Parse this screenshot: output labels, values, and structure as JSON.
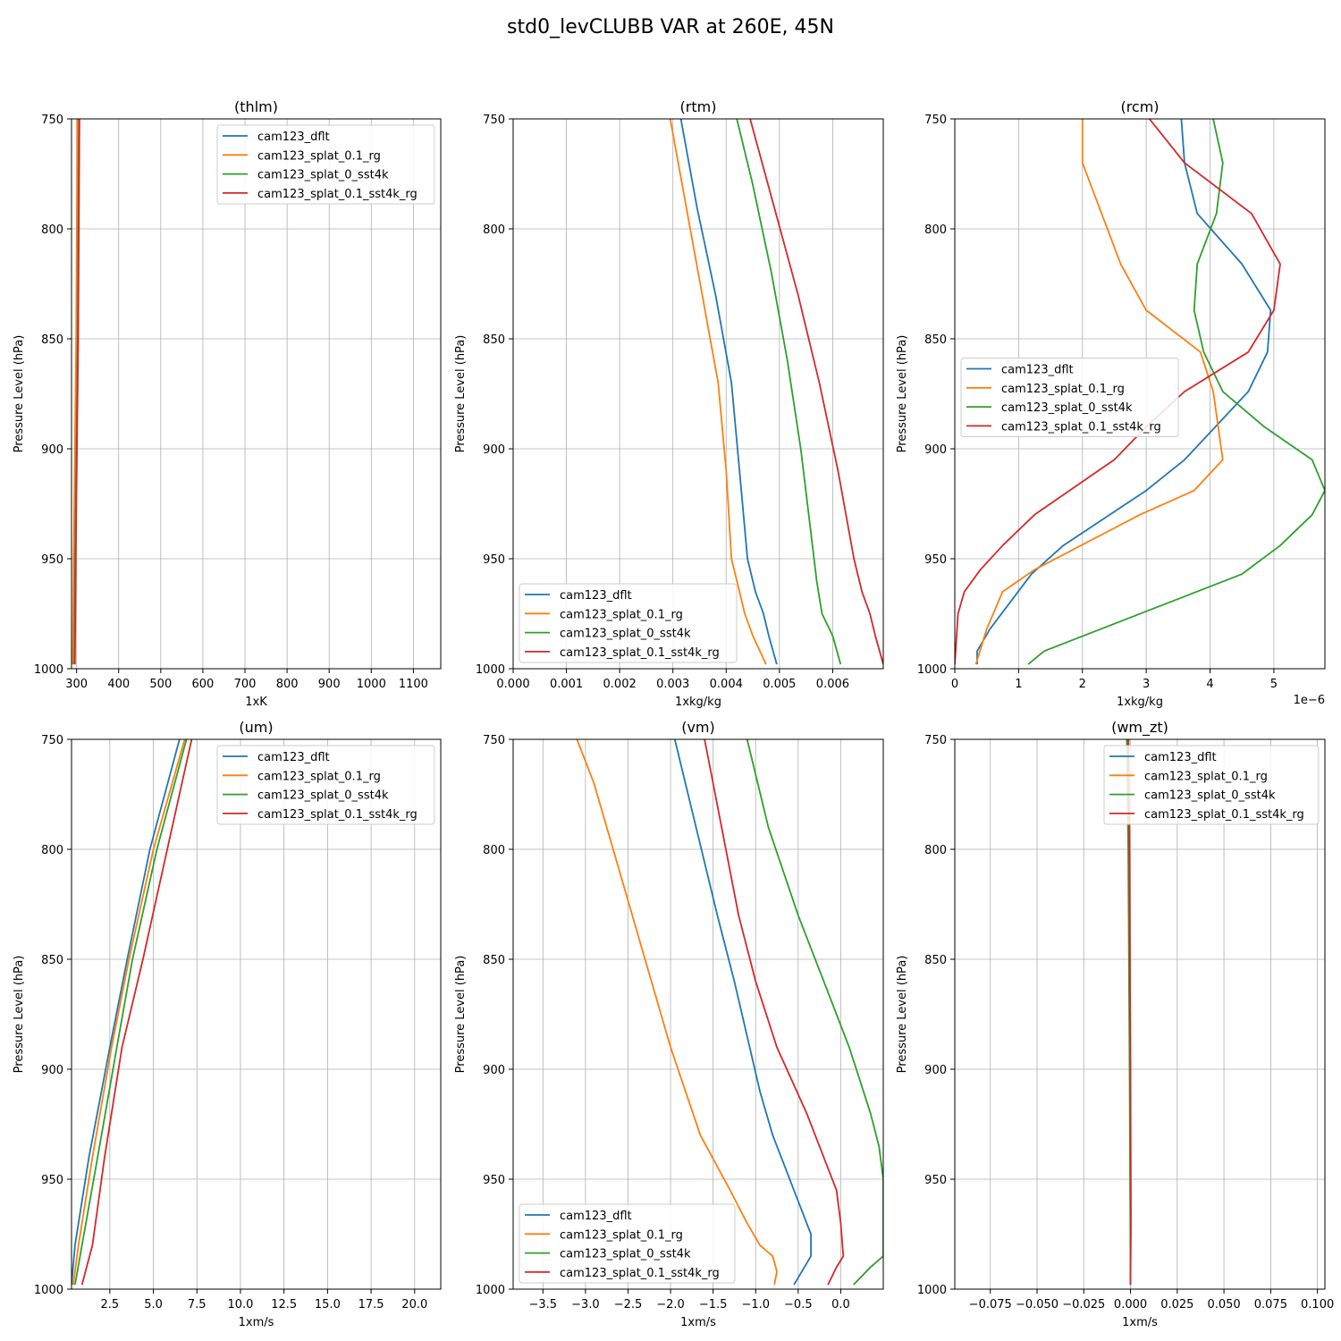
{
  "figure": {
    "title": "std0_levCLUBB VAR at 260E, 45N"
  },
  "colors": {
    "cam123_dflt": "#1f77b4",
    "cam123_splat_0.1_rg": "#ff7f0e",
    "cam123_splat_0_sst4k": "#2ca02c",
    "cam123_splat_0.1_sst4k_rg": "#d62728",
    "grid": "#b0b0b0"
  },
  "chart_data": [
    {
      "type": "line",
      "title": "(thlm)",
      "xlabel": "1xK",
      "ylabel": "Pressure Level (hPa)",
      "xlim": [
        288,
        1165
      ],
      "ylim": [
        1000,
        750
      ],
      "y_inverted": true,
      "xticks": [
        300,
        400,
        500,
        600,
        700,
        800,
        900,
        1000,
        1100
      ],
      "xtick_labels": [
        "300",
        "400",
        "500",
        "600",
        "700",
        "800",
        "900",
        "1000",
        "1100"
      ],
      "yticks": [
        750,
        800,
        850,
        900,
        950,
        1000
      ],
      "ytick_labels": [
        "750",
        "800",
        "850",
        "900",
        "950",
        "1000"
      ],
      "grid": true,
      "legend_loc": "upper-right",
      "series": [
        {
          "name": "cam123_dflt",
          "x": [
            292,
            294,
            297,
            300,
            303
          ],
          "y": [
            998,
            950,
            900,
            850,
            750
          ]
        },
        {
          "name": "cam123_splat_0.1_rg",
          "x": [
            291,
            293,
            296,
            299,
            302
          ],
          "y": [
            998,
            950,
            900,
            850,
            750
          ]
        },
        {
          "name": "cam123_splat_0_sst4k",
          "x": [
            295,
            297,
            300,
            303,
            306
          ],
          "y": [
            998,
            950,
            900,
            850,
            750
          ]
        },
        {
          "name": "cam123_splat_0.1_sst4k_rg",
          "x": [
            296,
            298,
            301,
            304,
            307
          ],
          "y": [
            998,
            950,
            900,
            850,
            750
          ]
        }
      ]
    },
    {
      "type": "line",
      "title": "(rtm)",
      "xlabel": "1xkg/kg",
      "ylabel": "Pressure Level (hPa)",
      "xlim": [
        0,
        0.00695
      ],
      "ylim": [
        1000,
        750
      ],
      "y_inverted": true,
      "xticks": [
        0,
        0.001,
        0.002,
        0.003,
        0.004,
        0.005,
        0.006
      ],
      "xtick_labels": [
        "0.000",
        "0.001",
        "0.002",
        "0.003",
        "0.004",
        "0.005",
        "0.006"
      ],
      "yticks": [
        750,
        800,
        850,
        900,
        950,
        1000
      ],
      "ytick_labels": [
        "750",
        "800",
        "850",
        "900",
        "950",
        "1000"
      ],
      "grid": true,
      "legend_loc": "lower-left",
      "series": [
        {
          "name": "cam123_dflt",
          "x": [
            0.00315,
            0.00345,
            0.0038,
            0.0041,
            0.00425,
            0.0044,
            0.00455,
            0.0047,
            0.0048,
            0.00495
          ],
          "y": [
            750,
            790,
            830,
            870,
            910,
            950,
            965,
            975,
            985,
            998
          ]
        },
        {
          "name": "cam123_splat_0.1_rg",
          "x": [
            0.00295,
            0.00325,
            0.00355,
            0.00385,
            0.004,
            0.0041,
            0.00425,
            0.00435,
            0.0045,
            0.00475
          ],
          "y": [
            750,
            790,
            830,
            870,
            910,
            950,
            965,
            975,
            985,
            998
          ]
        },
        {
          "name": "cam123_splat_0_sst4k",
          "x": [
            0.0042,
            0.0045,
            0.00485,
            0.00515,
            0.0054,
            0.0056,
            0.0057,
            0.0058,
            0.006,
            0.00615
          ],
          "y": [
            750,
            780,
            820,
            860,
            900,
            940,
            960,
            975,
            985,
            998
          ]
        },
        {
          "name": "cam123_splat_0.1_sst4k_rg",
          "x": [
            0.00445,
            0.0049,
            0.00535,
            0.00575,
            0.0061,
            0.0064,
            0.00655,
            0.0067,
            0.0068,
            0.00695
          ],
          "y": [
            750,
            790,
            830,
            870,
            910,
            950,
            965,
            975,
            985,
            998
          ]
        }
      ]
    },
    {
      "type": "line",
      "title": "(rcm)",
      "xlabel": "1xkg/kg",
      "ylabel": "Pressure Level (hPa)",
      "x_scale_label": "1e−6",
      "xlim": [
        0,
        5.8
      ],
      "ylim": [
        1000,
        750
      ],
      "y_inverted": true,
      "xticks": [
        0,
        1,
        2,
        3,
        4,
        5
      ],
      "xtick_labels": [
        "0",
        "1",
        "2",
        "3",
        "4",
        "5"
      ],
      "yticks": [
        750,
        800,
        850,
        900,
        950,
        1000
      ],
      "ytick_labels": [
        "750",
        "800",
        "850",
        "900",
        "950",
        "1000"
      ],
      "grid": true,
      "legend_loc": "center-left",
      "series": [
        {
          "name": "cam123_dflt",
          "x": [
            3.55,
            3.6,
            3.8,
            4.5,
            4.95,
            4.9,
            4.6,
            3.6,
            3.0,
            1.7,
            1.2,
            0.55,
            0.35,
            0.35
          ],
          "y": [
            750,
            770,
            793,
            816,
            837,
            856,
            874,
            905,
            919,
            944,
            957,
            982,
            992,
            998
          ]
        },
        {
          "name": "cam123_splat_0.1_rg",
          "x": [
            2.0,
            2.0,
            2.3,
            2.6,
            3.0,
            3.85,
            4.05,
            4.2,
            3.75,
            2.9,
            1.25,
            0.75,
            0.5,
            0.33
          ],
          "y": [
            750,
            770,
            793,
            816,
            837,
            856,
            874,
            905,
            919,
            930,
            955,
            965,
            982,
            998
          ]
        },
        {
          "name": "cam123_splat_0_sst4k",
          "x": [
            4.05,
            4.2,
            4.1,
            3.8,
            3.75,
            3.9,
            4.2,
            4.85,
            5.6,
            5.8,
            5.6,
            5.1,
            4.5,
            1.4,
            1.15
          ],
          "y": [
            750,
            770,
            793,
            816,
            837,
            856,
            874,
            890,
            905,
            919,
            930,
            944,
            957,
            992,
            998
          ]
        },
        {
          "name": "cam123_splat_0.1_sst4k_rg",
          "x": [
            3.05,
            3.6,
            4.65,
            5.1,
            5.0,
            4.6,
            3.6,
            3.0,
            2.5,
            1.25,
            0.75,
            0.4,
            0.15,
            0.05,
            0.0
          ],
          "y": [
            750,
            770,
            793,
            816,
            837,
            856,
            874,
            890,
            905,
            930,
            944,
            955,
            965,
            975,
            998
          ]
        }
      ]
    },
    {
      "type": "line",
      "title": "(um)",
      "xlabel": "1xm/s",
      "ylabel": "Pressure Level (hPa)",
      "xlim": [
        0.3,
        21.5
      ],
      "ylim": [
        1000,
        750
      ],
      "y_inverted": true,
      "xticks": [
        2.5,
        5.0,
        7.5,
        10.0,
        12.5,
        15.0,
        17.5,
        20.0
      ],
      "xtick_labels": [
        "2.5",
        "5.0",
        "7.5",
        "10.0",
        "12.5",
        "15.0",
        "17.5",
        "20.0"
      ],
      "yticks": [
        750,
        800,
        850,
        900,
        950,
        1000
      ],
      "ytick_labels": [
        "750",
        "800",
        "850",
        "900",
        "950",
        "1000"
      ],
      "grid": true,
      "legend_loc": "upper-right",
      "series": [
        {
          "name": "cam123_dflt",
          "x": [
            6.5,
            4.8,
            3.5,
            2.5,
            1.3,
            0.5,
            0.3
          ],
          "y": [
            750,
            800,
            850,
            890,
            940,
            980,
            998
          ]
        },
        {
          "name": "cam123_splat_0.1_rg",
          "x": [
            6.8,
            5.0,
            3.6,
            2.6,
            1.5,
            0.7,
            0.4
          ],
          "y": [
            750,
            800,
            850,
            890,
            940,
            980,
            998
          ]
        },
        {
          "name": "cam123_splat_0_sst4k",
          "x": [
            6.9,
            5.2,
            3.8,
            2.9,
            1.8,
            0.9,
            0.5
          ],
          "y": [
            750,
            800,
            850,
            890,
            940,
            980,
            998
          ]
        },
        {
          "name": "cam123_splat_0.1_sst4k_rg",
          "x": [
            7.2,
            5.8,
            4.4,
            3.2,
            2.2,
            1.5,
            0.9
          ],
          "y": [
            750,
            800,
            850,
            890,
            940,
            980,
            998
          ]
        }
      ]
    },
    {
      "type": "line",
      "title": "(vm)",
      "xlabel": "1xm/s",
      "ylabel": "Pressure Level (hPa)",
      "xlim": [
        -3.85,
        0.5
      ],
      "ylim": [
        1000,
        750
      ],
      "y_inverted": true,
      "xticks": [
        -3.5,
        -3.0,
        -2.5,
        -2.0,
        -1.5,
        -1.0,
        -0.5,
        0.0
      ],
      "xtick_labels": [
        "−3.5",
        "−3.0",
        "−2.5",
        "−2.0",
        "−1.5",
        "−1.0",
        "−0.5",
        "0.0"
      ],
      "yticks": [
        750,
        800,
        850,
        900,
        950,
        1000
      ],
      "ytick_labels": [
        "750",
        "800",
        "850",
        "900",
        "950",
        "1000"
      ],
      "grid": true,
      "legend_loc": "lower-left",
      "series": [
        {
          "name": "cam123_dflt",
          "x": [
            -1.95,
            -1.7,
            -1.45,
            -1.25,
            -1.1,
            -0.95,
            -0.8,
            -0.65,
            -0.5,
            -0.35,
            -0.35,
            -0.55
          ],
          "y": [
            750,
            790,
            830,
            860,
            885,
            910,
            930,
            945,
            960,
            975,
            985,
            998
          ]
        },
        {
          "name": "cam123_splat_0.1_rg",
          "x": [
            -3.1,
            -2.9,
            -2.6,
            -2.3,
            -2.0,
            -1.65,
            -1.3,
            -1.1,
            -0.95,
            -0.8,
            -0.75,
            -0.78
          ],
          "y": [
            750,
            770,
            810,
            850,
            890,
            930,
            955,
            970,
            980,
            985,
            992,
            998
          ]
        },
        {
          "name": "cam123_splat_0_sst4k",
          "x": [
            -1.1,
            -0.85,
            -0.5,
            -0.2,
            0.1,
            0.35,
            0.45,
            0.5,
            0.5,
            0.5,
            0.35,
            0.15
          ],
          "y": [
            750,
            790,
            830,
            860,
            890,
            920,
            935,
            950,
            965,
            985,
            990,
            998
          ]
        },
        {
          "name": "cam123_splat_0.1_sst4k_rg",
          "x": [
            -1.6,
            -1.4,
            -1.2,
            -1.0,
            -0.75,
            -0.4,
            -0.2,
            -0.05,
            0.0,
            0.03,
            -0.05,
            -0.15
          ],
          "y": [
            750,
            790,
            830,
            860,
            890,
            920,
            940,
            955,
            970,
            985,
            990,
            998
          ]
        }
      ]
    },
    {
      "type": "line",
      "title": "(wm_zt)",
      "xlabel": "1xm/s",
      "ylabel": "Pressure Level (hPa)",
      "xlim": [
        -0.094,
        0.104
      ],
      "ylim": [
        1000,
        750
      ],
      "y_inverted": true,
      "xticks": [
        -0.075,
        -0.05,
        -0.025,
        0.0,
        0.025,
        0.05,
        0.075,
        0.1
      ],
      "xtick_labels": [
        "−0.075",
        "−0.050",
        "−0.025",
        "0.000",
        "0.025",
        "0.050",
        "0.075",
        "0.100"
      ],
      "yticks": [
        750,
        800,
        850,
        900,
        950,
        1000
      ],
      "ytick_labels": [
        "750",
        "800",
        "850",
        "900",
        "950",
        "1000"
      ],
      "grid": true,
      "legend_loc": "upper-right",
      "series": [
        {
          "name": "cam123_dflt",
          "x": [
            -0.0015,
            -0.0008,
            -0.0002,
            0.0,
            0.0
          ],
          "y": [
            750,
            800,
            900,
            970,
            998
          ]
        },
        {
          "name": "cam123_splat_0.1_rg",
          "x": [
            -0.001,
            -0.0005,
            0.0,
            0.0001,
            0.0
          ],
          "y": [
            750,
            800,
            900,
            970,
            998
          ]
        },
        {
          "name": "cam123_splat_0_sst4k",
          "x": [
            -0.002,
            -0.0012,
            -0.0005,
            -0.0001,
            0.0
          ],
          "y": [
            750,
            800,
            900,
            970,
            998
          ]
        },
        {
          "name": "cam123_splat_0.1_sst4k_rg",
          "x": [
            -0.0012,
            -0.0006,
            0.0,
            0.0002,
            0.0
          ],
          "y": [
            750,
            800,
            900,
            970,
            998
          ]
        }
      ]
    }
  ]
}
